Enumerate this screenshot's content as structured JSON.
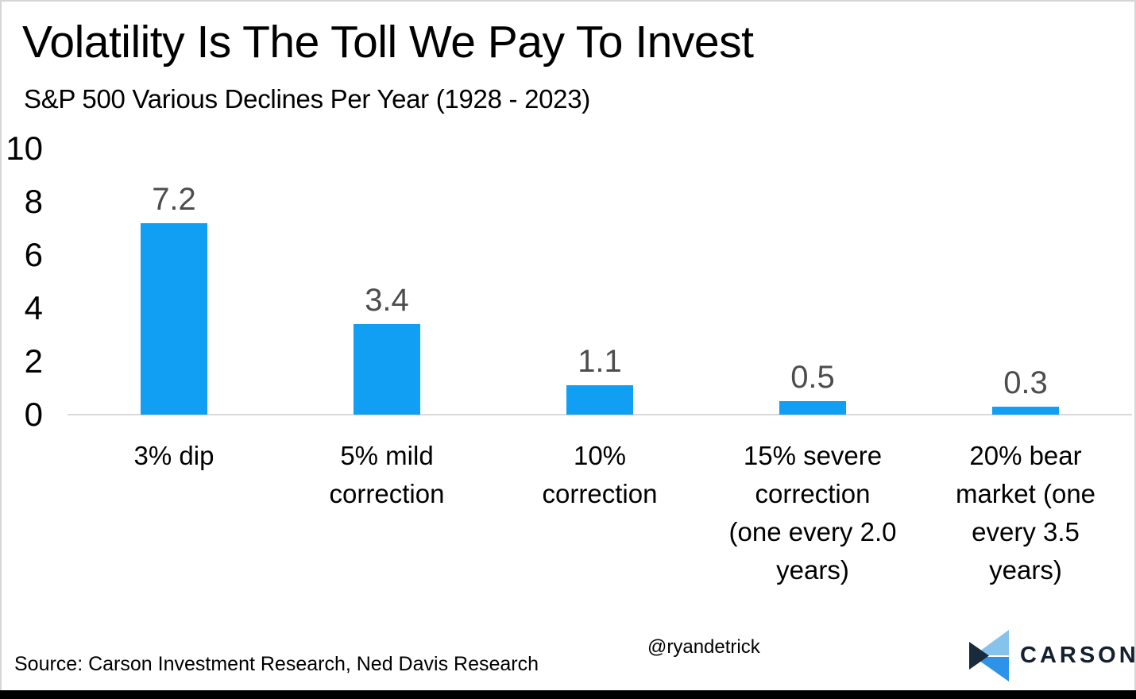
{
  "header": {
    "title": "Volatility Is The Toll We Pay To Invest",
    "subtitle": "S&P 500 Various Declines Per Year (1928 - 2023)"
  },
  "chart_data": {
    "type": "bar",
    "title": "Volatility Is The Toll We Pay To Invest",
    "subtitle": "S&P 500 Various Declines Per Year (1928 - 2023)",
    "categories": [
      "3% dip",
      "5% mild correction",
      "10% correction",
      "15% severe correction (one every 2.0 years)",
      "20% bear market (one every 3.5 years)"
    ],
    "values": [
      7.2,
      3.4,
      1.1,
      0.5,
      0.3
    ],
    "data_labels": [
      "7.2",
      "3.4",
      "1.1",
      "0.5",
      "0.3"
    ],
    "xlabel": "",
    "ylabel": "",
    "ylim": [
      0,
      10
    ],
    "yticks": [
      0,
      2,
      4,
      6,
      8,
      10
    ],
    "grid": false,
    "legend": false,
    "bar_color": "#119ff4",
    "value_label_color": "#4d4d4d",
    "axis_line_color": "#d9d9d9"
  },
  "footer": {
    "source": "Source: Carson Investment Research, Ned Davis Research",
    "handle": "@ryandetrick",
    "brand": "CARSON"
  },
  "logo": {
    "icon": "carson-chevron-icon",
    "color_light": "#85c3ec",
    "color_mid": "#2e93e8",
    "color_dark": "#1a2a3d",
    "text_color": "#14202e"
  }
}
